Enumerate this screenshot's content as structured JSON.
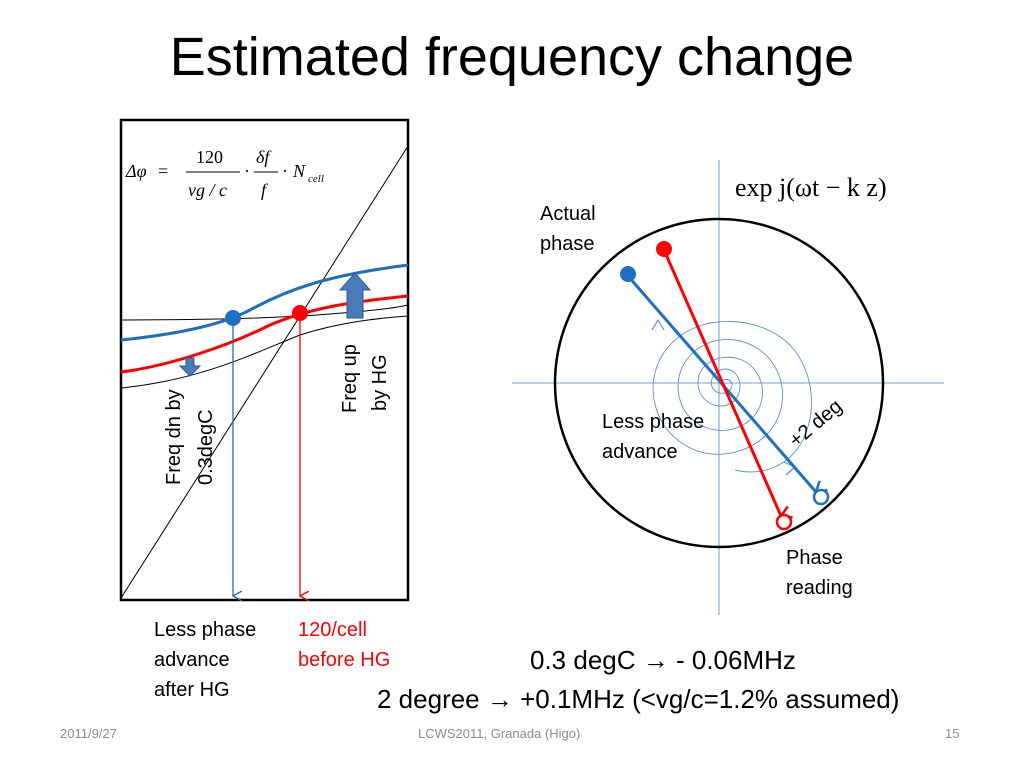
{
  "slide": {
    "title": "Estimated frequency change",
    "footer": {
      "date": "2011/9/27",
      "center": "LCWS2011, Granada (Higo)",
      "page": "15"
    }
  },
  "left_panel": {
    "formula": {
      "lhs": "Δφ",
      "eq": "=",
      "num1": "120",
      "den1": "vg / c",
      "num2": "δf",
      "den2": "f",
      "dot": "·",
      "n": "N",
      "n_sub": "cell"
    },
    "label_freq_dn_line1": "Freq dn by",
    "label_freq_dn_line2": "0.3degC",
    "label_freq_up_line1": "Freq up",
    "label_freq_up_line2": "by HG",
    "label_less_advance": [
      "Less phase",
      "advance",
      "after HG"
    ],
    "label_before_hg": [
      "120/cell",
      "before HG"
    ]
  },
  "right_panel": {
    "formula": "exp j(ωt − k z)",
    "label_actual_phase": [
      "Actual",
      "phase"
    ],
    "label_less_phase_advance": [
      "Less phase",
      "advance"
    ],
    "label_plus2deg": "+2 deg",
    "label_phase_reading": [
      "Phase",
      "reading"
    ]
  },
  "summary": {
    "line1": "0.3 degC → - 0.06MHz",
    "line2": "2 degree → +0.1MHz (<vg/c=1.2% assumed)"
  },
  "colors": {
    "blue": "#1f6fbf",
    "red": "#ff0000",
    "axis_blue": "#8db3e2",
    "arrow_blue": "#4a7bb7"
  }
}
